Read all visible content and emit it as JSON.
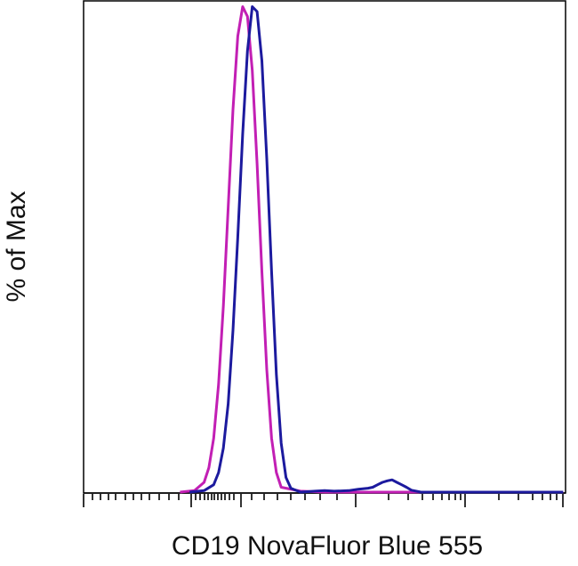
{
  "chart_data": {
    "type": "line",
    "title": "",
    "xlabel": "CD19 NovaFluor Blue 555",
    "ylabel": "% of Max",
    "x_scale": "biexponential",
    "x_tick_labels": [],
    "y_tick_labels": [],
    "ylim": [
      0,
      100
    ],
    "grid": false,
    "legend": "none",
    "series": [
      {
        "color": "#c21fb4",
        "x": [
          20,
          23,
          25,
          26,
          27,
          28,
          29,
          30,
          31,
          32,
          33,
          34,
          35,
          36,
          37,
          38,
          39,
          40,
          41,
          45,
          50,
          55,
          60,
          65,
          70,
          75,
          80,
          85,
          90,
          95,
          99.5
        ],
        "y": [
          0,
          0.3,
          2,
          5,
          11,
          22,
          38,
          58,
          78,
          93,
          99,
          97,
          86,
          67,
          45,
          25,
          11,
          4,
          1,
          0.2,
          0,
          0,
          0,
          0,
          0,
          0,
          0,
          0,
          0,
          0,
          0
        ]
      },
      {
        "color": "#1c1a9e",
        "x": [
          22,
          25,
          27,
          28,
          29,
          30,
          31,
          32,
          33,
          34,
          35,
          36,
          37,
          38,
          39,
          40,
          41,
          42,
          43,
          45,
          48,
          50,
          52,
          55,
          57,
          59,
          60,
          61,
          62,
          63,
          64,
          65,
          66,
          67,
          68,
          70,
          75,
          80,
          85,
          90,
          95,
          99.5
        ],
        "y": [
          0,
          0.3,
          1.5,
          4,
          9,
          18,
          33,
          52,
          73,
          90,
          99,
          98,
          88,
          68,
          45,
          24,
          10,
          3,
          0.8,
          0,
          0.2,
          0.3,
          0.2,
          0.3,
          0.6,
          0.8,
          1,
          1.5,
          2,
          2.3,
          2.5,
          2,
          1.5,
          1,
          0.4,
          0,
          0,
          0,
          0,
          0,
          0,
          0
        ]
      }
    ]
  }
}
